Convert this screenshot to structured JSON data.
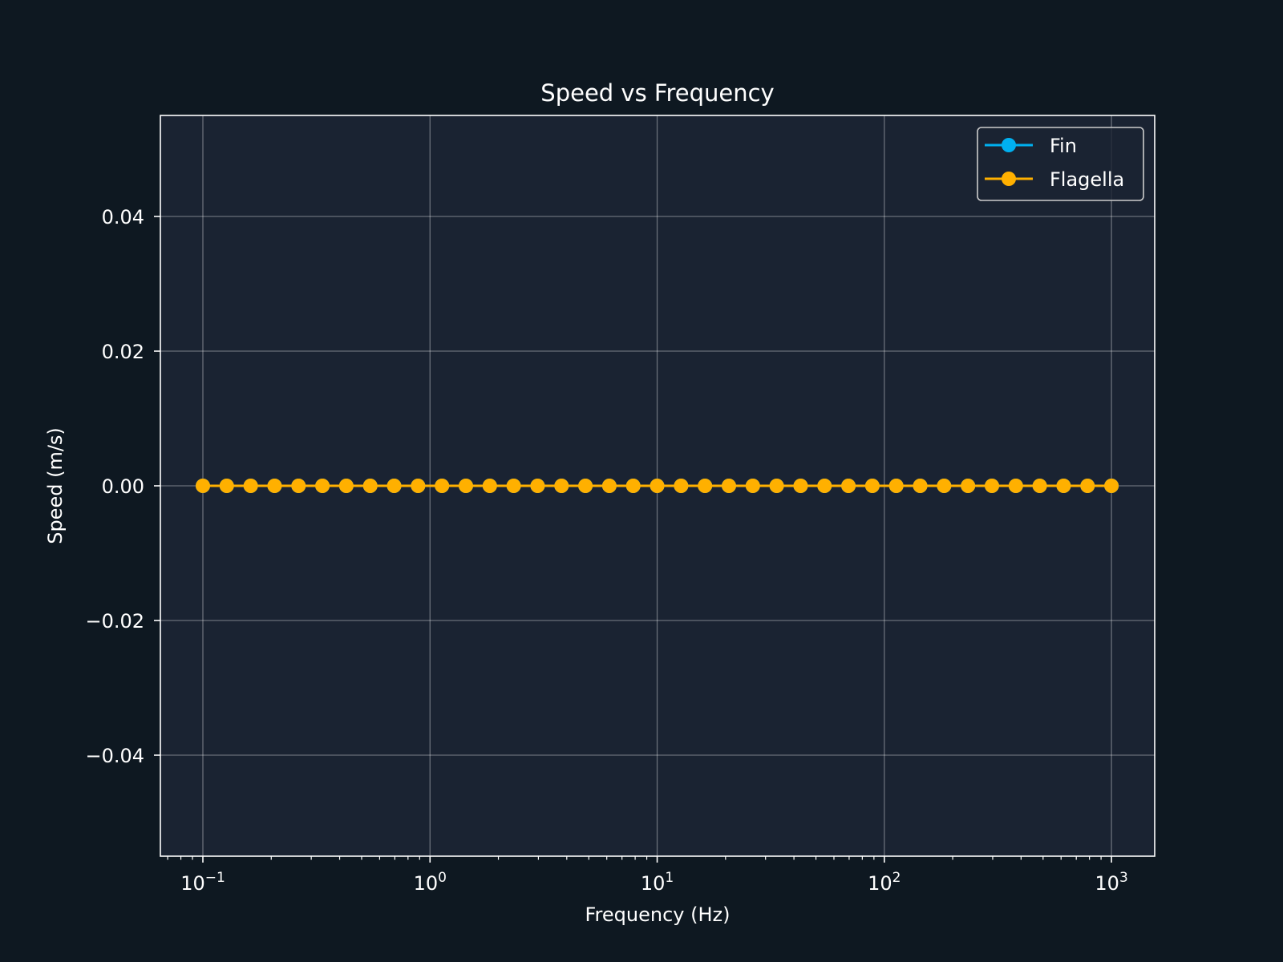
{
  "colors": {
    "figure_bg": "#0e1821",
    "axes_bg": "#1a2332",
    "axes_edge": "#ffffff",
    "grid": "#ffffff",
    "text": "#ffffff"
  },
  "chart_data": {
    "type": "line",
    "title": "Speed vs Frequency",
    "xlabel": "Frequency (Hz)",
    "ylabel": "Speed (m/s)",
    "xscale": "log",
    "xlim": [
      0.065,
      1550
    ],
    "ylim": [
      -0.055,
      0.055
    ],
    "grid": true,
    "legend_position": "top-right",
    "x_ticks": [
      {
        "value": 0.1,
        "base": "10",
        "exp": "−1"
      },
      {
        "value": 1,
        "base": "10",
        "exp": "0"
      },
      {
        "value": 10,
        "base": "10",
        "exp": "1"
      },
      {
        "value": 100,
        "base": "10",
        "exp": "2"
      },
      {
        "value": 1000,
        "base": "10",
        "exp": "3"
      }
    ],
    "y_ticks": [
      {
        "value": 0.04,
        "label": "0.04"
      },
      {
        "value": 0.02,
        "label": "0.02"
      },
      {
        "value": 0.0,
        "label": "0.00"
      },
      {
        "value": -0.02,
        "label": "−0.02"
      },
      {
        "value": -0.04,
        "label": "−0.04"
      }
    ],
    "x": [
      0.1,
      0.1274,
      0.1624,
      0.2069,
      0.2637,
      0.336,
      0.4281,
      0.5456,
      0.6952,
      0.8859,
      1.1288,
      1.4384,
      1.833,
      2.3357,
      2.9764,
      3.7927,
      4.8329,
      6.1585,
      7.8476,
      10.0,
      12.743,
      16.238,
      20.691,
      26.367,
      33.598,
      42.813,
      54.556,
      69.519,
      88.587,
      112.88,
      143.84,
      183.3,
      233.57,
      297.64,
      379.27,
      483.29,
      615.85,
      784.76,
      1000.0
    ],
    "series": [
      {
        "name": "Fin",
        "color": "#00b0f0",
        "values": [
          0,
          0,
          0,
          0,
          0,
          0,
          0,
          0,
          0,
          0,
          0,
          0,
          0,
          0,
          0,
          0,
          0,
          0,
          0,
          0,
          0,
          0,
          0,
          0,
          0,
          0,
          0,
          0,
          0,
          0,
          0,
          0,
          0,
          0,
          0,
          0,
          0,
          0,
          0
        ]
      },
      {
        "name": "Flagella",
        "color": "#ffb000",
        "values": [
          0,
          0,
          0,
          0,
          0,
          0,
          0,
          0,
          0,
          0,
          0,
          0,
          0,
          0,
          0,
          0,
          0,
          0,
          0,
          0,
          0,
          0,
          0,
          0,
          0,
          0,
          0,
          0,
          0,
          0,
          0,
          0,
          0,
          0,
          0,
          0,
          0,
          0,
          0
        ]
      }
    ]
  }
}
